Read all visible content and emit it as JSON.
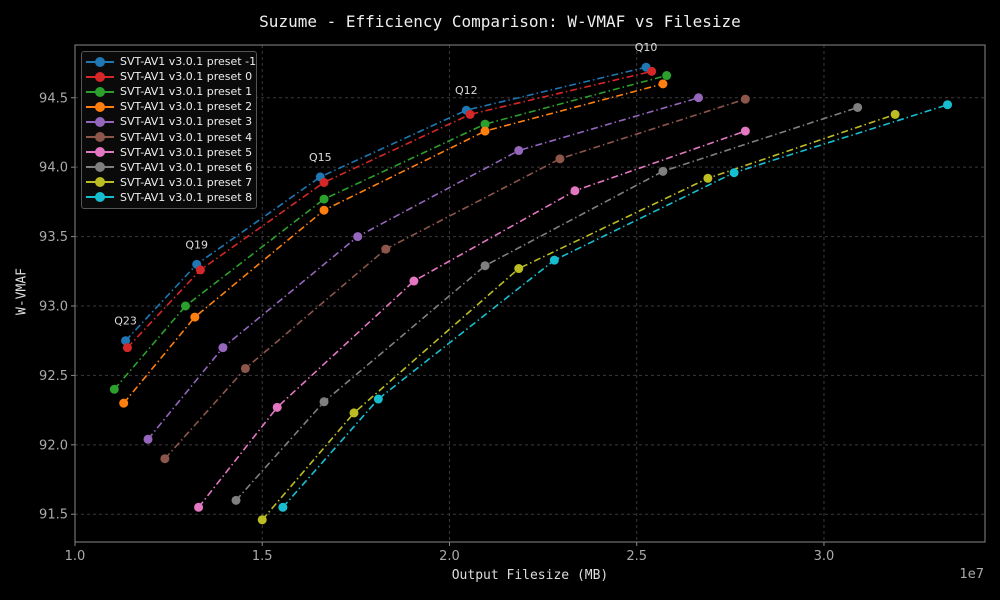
{
  "chart_data": {
    "type": "line",
    "title": "Suzume - Efficiency Comparison: W-VMAF vs Filesize",
    "xlabel": "Output Filesize (MB)",
    "ylabel": "W-VMAF",
    "x_exponent_label": "1e7",
    "xlim": [
      1.0,
      3.43
    ],
    "ylim": [
      91.3,
      94.88
    ],
    "x_ticks": [
      "1.0",
      "1.5",
      "2.0",
      "2.5",
      "3.0"
    ],
    "x_tick_values": [
      1.0,
      1.5,
      2.0,
      2.5,
      3.0
    ],
    "y_ticks": [
      "91.5",
      "92.0",
      "92.5",
      "93.0",
      "93.5",
      "94.0",
      "94.5"
    ],
    "y_tick_values": [
      91.5,
      92.0,
      92.5,
      93.0,
      93.5,
      94.0,
      94.5
    ],
    "grid": true,
    "legend_position": "upper-left",
    "series": [
      {
        "name": "SVT-AV1 v3.0.1 preset -1",
        "color": "#1f77b4",
        "style": "dashdot",
        "points": [
          [
            1.135,
            92.75
          ],
          [
            1.325,
            93.3
          ],
          [
            1.655,
            93.93
          ],
          [
            2.045,
            94.41
          ],
          [
            2.525,
            94.72
          ]
        ]
      },
      {
        "name": "SVT-AV1 v3.0.1 preset 0",
        "color": "#d62728",
        "style": "dashdot",
        "points": [
          [
            1.14,
            92.7
          ],
          [
            1.335,
            93.26
          ],
          [
            1.665,
            93.89
          ],
          [
            2.055,
            94.38
          ],
          [
            2.54,
            94.69
          ]
        ]
      },
      {
        "name": "SVT-AV1 v3.0.1 preset 1",
        "color": "#2ca02c",
        "style": "dashdot",
        "points": [
          [
            1.105,
            92.4
          ],
          [
            1.295,
            93.0
          ],
          [
            1.665,
            93.77
          ],
          [
            2.095,
            94.31
          ],
          [
            2.58,
            94.66
          ]
        ]
      },
      {
        "name": "SVT-AV1 v3.0.1 preset 2",
        "color": "#ff7f0e",
        "style": "dashdot",
        "points": [
          [
            1.13,
            92.3
          ],
          [
            1.32,
            92.92
          ],
          [
            1.665,
            93.69
          ],
          [
            2.095,
            94.26
          ],
          [
            2.57,
            94.6
          ]
        ]
      },
      {
        "name": "SVT-AV1 v3.0.1 preset 3",
        "color": "#9467bd",
        "style": "dashdot",
        "points": [
          [
            1.195,
            92.04
          ],
          [
            1.395,
            92.7
          ],
          [
            1.755,
            93.5
          ],
          [
            2.185,
            94.12
          ],
          [
            2.665,
            94.5
          ]
        ]
      },
      {
        "name": "SVT-AV1 v3.0.1 preset 4",
        "color": "#8c564b",
        "style": "dashdot",
        "points": [
          [
            1.24,
            91.9
          ],
          [
            1.455,
            92.55
          ],
          [
            1.83,
            93.41
          ],
          [
            2.295,
            94.06
          ],
          [
            2.79,
            94.49
          ]
        ]
      },
      {
        "name": "SVT-AV1 v3.0.1 preset 5",
        "color": "#e377c2",
        "style": "dashdot",
        "points": [
          [
            1.33,
            91.55
          ],
          [
            1.54,
            92.27
          ],
          [
            1.905,
            93.18
          ],
          [
            2.335,
            93.83
          ],
          [
            2.79,
            94.26
          ]
        ]
      },
      {
        "name": "SVT-AV1 v3.0.1 preset 6",
        "color": "#7f7f7f",
        "style": "dashdot",
        "points": [
          [
            1.43,
            91.6
          ],
          [
            1.665,
            92.31
          ],
          [
            2.095,
            93.29
          ],
          [
            2.57,
            93.97
          ],
          [
            3.09,
            94.43
          ]
        ]
      },
      {
        "name": "SVT-AV1 v3.0.1 preset 7",
        "color": "#bcbd22",
        "style": "dashdot",
        "points": [
          [
            1.5,
            91.46
          ],
          [
            1.745,
            92.23
          ],
          [
            2.185,
            93.27
          ],
          [
            2.69,
            93.92
          ],
          [
            3.19,
            94.38
          ]
        ]
      },
      {
        "name": "SVT-AV1 v3.0.1 preset 8",
        "color": "#17becf",
        "style": "dashdot",
        "points": [
          [
            1.555,
            91.55
          ],
          [
            1.81,
            92.33
          ],
          [
            2.28,
            93.33
          ],
          [
            2.76,
            93.96
          ],
          [
            3.33,
            94.45
          ]
        ]
      }
    ],
    "annotations": [
      {
        "text": "Q23",
        "x": 1.135,
        "y": 92.75
      },
      {
        "text": "Q19",
        "x": 1.325,
        "y": 93.3
      },
      {
        "text": "Q15",
        "x": 1.655,
        "y": 93.93
      },
      {
        "text": "Q12",
        "x": 2.045,
        "y": 94.41
      },
      {
        "text": "Q10",
        "x": 2.525,
        "y": 94.72
      }
    ],
    "background": "#000000"
  }
}
